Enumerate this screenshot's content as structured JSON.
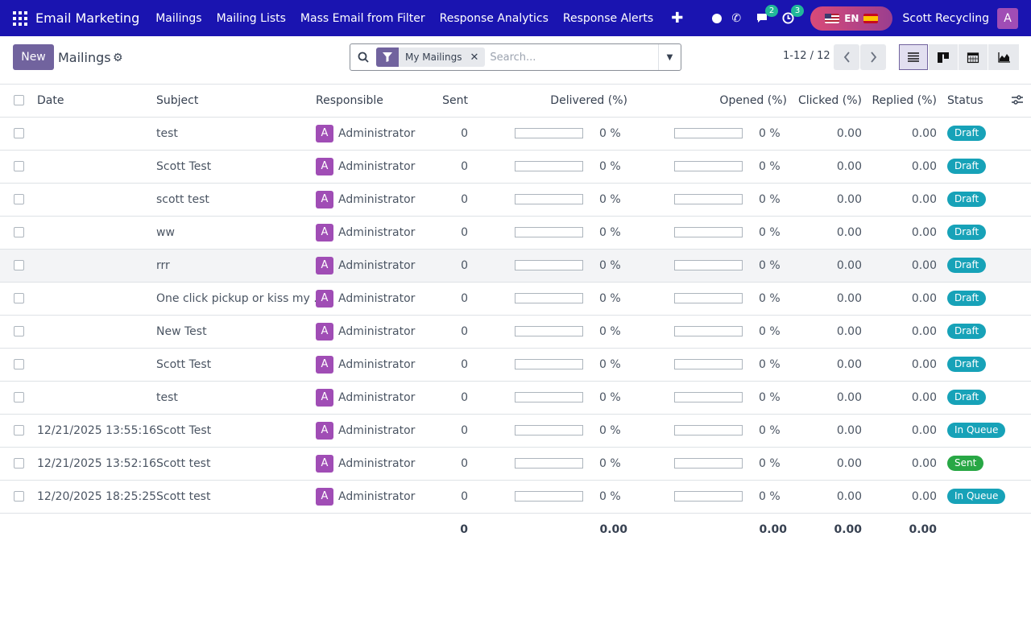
{
  "navbar": {
    "brand": "Email Marketing",
    "menu": [
      "Mailings",
      "Mailing Lists",
      "Mass Email from Filter",
      "Response Analytics",
      "Response Alerts"
    ],
    "chat_badge": "2",
    "activity_badge": "3",
    "lang": "EN",
    "company": "Scott Recycling",
    "avatar": "A"
  },
  "control": {
    "new_label": "New",
    "title": "Mailings",
    "facet": "My Mailings",
    "search_placeholder": "Search...",
    "pager": "1-12 / 12"
  },
  "table": {
    "headers": {
      "date": "Date",
      "subject": "Subject",
      "responsible": "Responsible",
      "sent": "Sent",
      "delivered": "Delivered (%)",
      "opened": "Opened (%)",
      "clicked": "Clicked (%)",
      "replied": "Replied (%)",
      "status": "Status"
    },
    "rows": [
      {
        "date": "",
        "subject": "test",
        "avatar": "A",
        "responsible": "Administrator",
        "sent": "0",
        "delivered": "0 %",
        "opened": "0 %",
        "clicked": "0.00",
        "replied": "0.00",
        "status": "Draft"
      },
      {
        "date": "",
        "subject": "Scott Test",
        "avatar": "A",
        "responsible": "Administrator",
        "sent": "0",
        "delivered": "0 %",
        "opened": "0 %",
        "clicked": "0.00",
        "replied": "0.00",
        "status": "Draft"
      },
      {
        "date": "",
        "subject": "scott test",
        "avatar": "A",
        "responsible": "Administrator",
        "sent": "0",
        "delivered": "0 %",
        "opened": "0 %",
        "clicked": "0.00",
        "replied": "0.00",
        "status": "Draft"
      },
      {
        "date": "",
        "subject": "ww",
        "avatar": "A",
        "responsible": "Administrator",
        "sent": "0",
        "delivered": "0 %",
        "opened": "0 %",
        "clicked": "0.00",
        "replied": "0.00",
        "status": "Draft"
      },
      {
        "date": "",
        "subject": "rrr",
        "avatar": "A",
        "responsible": "Administrator",
        "sent": "0",
        "delivered": "0 %",
        "opened": "0 %",
        "clicked": "0.00",
        "replied": "0.00",
        "status": "Draft"
      },
      {
        "date": "",
        "subject": "One click pickup or kiss my …",
        "avatar": "A",
        "responsible": "Administrator",
        "sent": "0",
        "delivered": "0 %",
        "opened": "0 %",
        "clicked": "0.00",
        "replied": "0.00",
        "status": "Draft"
      },
      {
        "date": "",
        "subject": "New Test",
        "avatar": "A",
        "responsible": "Administrator",
        "sent": "0",
        "delivered": "0 %",
        "opened": "0 %",
        "clicked": "0.00",
        "replied": "0.00",
        "status": "Draft"
      },
      {
        "date": "",
        "subject": "Scott Test",
        "avatar": "A",
        "responsible": "Administrator",
        "sent": "0",
        "delivered": "0 %",
        "opened": "0 %",
        "clicked": "0.00",
        "replied": "0.00",
        "status": "Draft"
      },
      {
        "date": "",
        "subject": "test",
        "avatar": "A",
        "responsible": "Administrator",
        "sent": "0",
        "delivered": "0 %",
        "opened": "0 %",
        "clicked": "0.00",
        "replied": "0.00",
        "status": "Draft"
      },
      {
        "date": "12/21/2025 13:55:16",
        "subject": "Scott Test",
        "avatar": "A",
        "responsible": "Administrator",
        "sent": "0",
        "delivered": "0 %",
        "opened": "0 %",
        "clicked": "0.00",
        "replied": "0.00",
        "status": "In Queue"
      },
      {
        "date": "12/21/2025 13:52:16",
        "subject": "Scott test",
        "avatar": "A",
        "responsible": "Administrator",
        "sent": "0",
        "delivered": "0 %",
        "opened": "0 %",
        "clicked": "0.00",
        "replied": "0.00",
        "status": "Sent"
      },
      {
        "date": "12/20/2025 18:25:25",
        "subject": "Scott test",
        "avatar": "A",
        "responsible": "Administrator",
        "sent": "0",
        "delivered": "0 %",
        "opened": "0 %",
        "clicked": "0.00",
        "replied": "0.00",
        "status": "In Queue"
      }
    ],
    "totals": {
      "sent": "0",
      "delivered": "0.00",
      "opened": "0.00",
      "clicked": "0.00",
      "replied": "0.00"
    }
  },
  "colors": {
    "navbar": "#1a14b0",
    "primary": "#71639e",
    "draft": "#17a2b8",
    "sent": "#28a745"
  }
}
